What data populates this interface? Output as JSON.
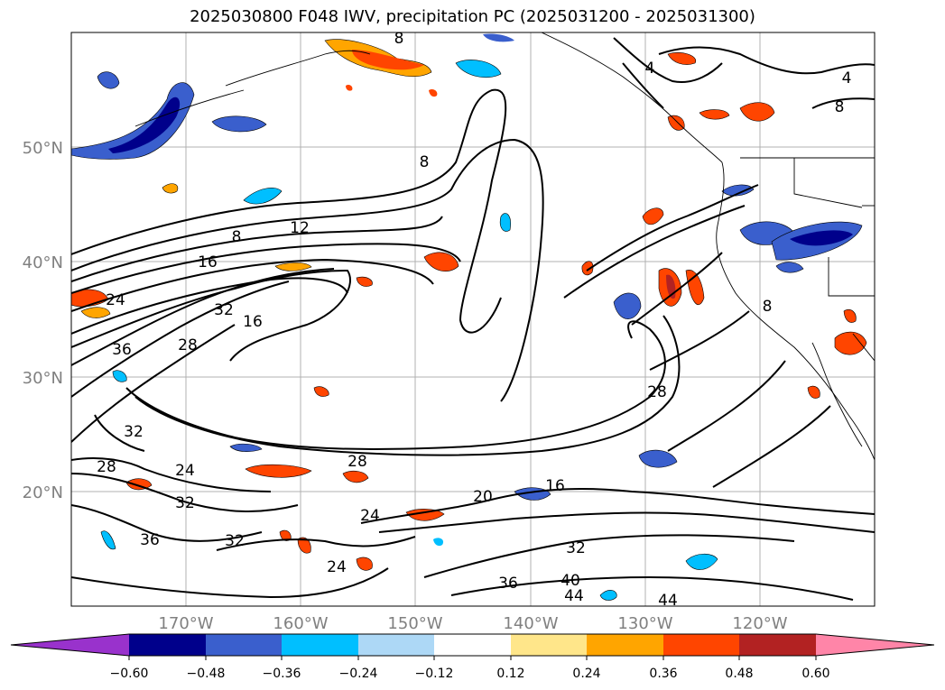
{
  "title": "2025030800 F048 IWV, precipitation PC (2025031200 - 2025031300)",
  "map": {
    "lat_labels": [
      "50°N",
      "40°N",
      "30°N",
      "20°N"
    ],
    "lon_labels": [
      "170°W",
      "160°W",
      "150°W",
      "140°W",
      "130°W",
      "120°W"
    ],
    "iwv_contour_labels": [
      "8",
      "4",
      "4",
      "8",
      "8",
      "12",
      "8",
      "16",
      "24",
      "32",
      "16",
      "36",
      "28",
      "32",
      "28",
      "24",
      "28",
      "32",
      "36",
      "24",
      "32",
      "24",
      "20",
      "16",
      "28",
      "32",
      "36",
      "40",
      "44",
      "44",
      "8"
    ]
  },
  "colorbar": {
    "ticks": [
      "−0.60",
      "−0.48",
      "−0.36",
      "−0.24",
      "−0.12",
      "0.12",
      "0.24",
      "0.36",
      "0.48",
      "0.60"
    ],
    "colors": [
      "#9932cc",
      "#00008b",
      "#3a5fcd",
      "#00bfff",
      "#add8f6",
      "#ffffff",
      "#ffe68a",
      "#ffa500",
      "#ff4500",
      "#b22222",
      "#ff85a8"
    ]
  }
}
